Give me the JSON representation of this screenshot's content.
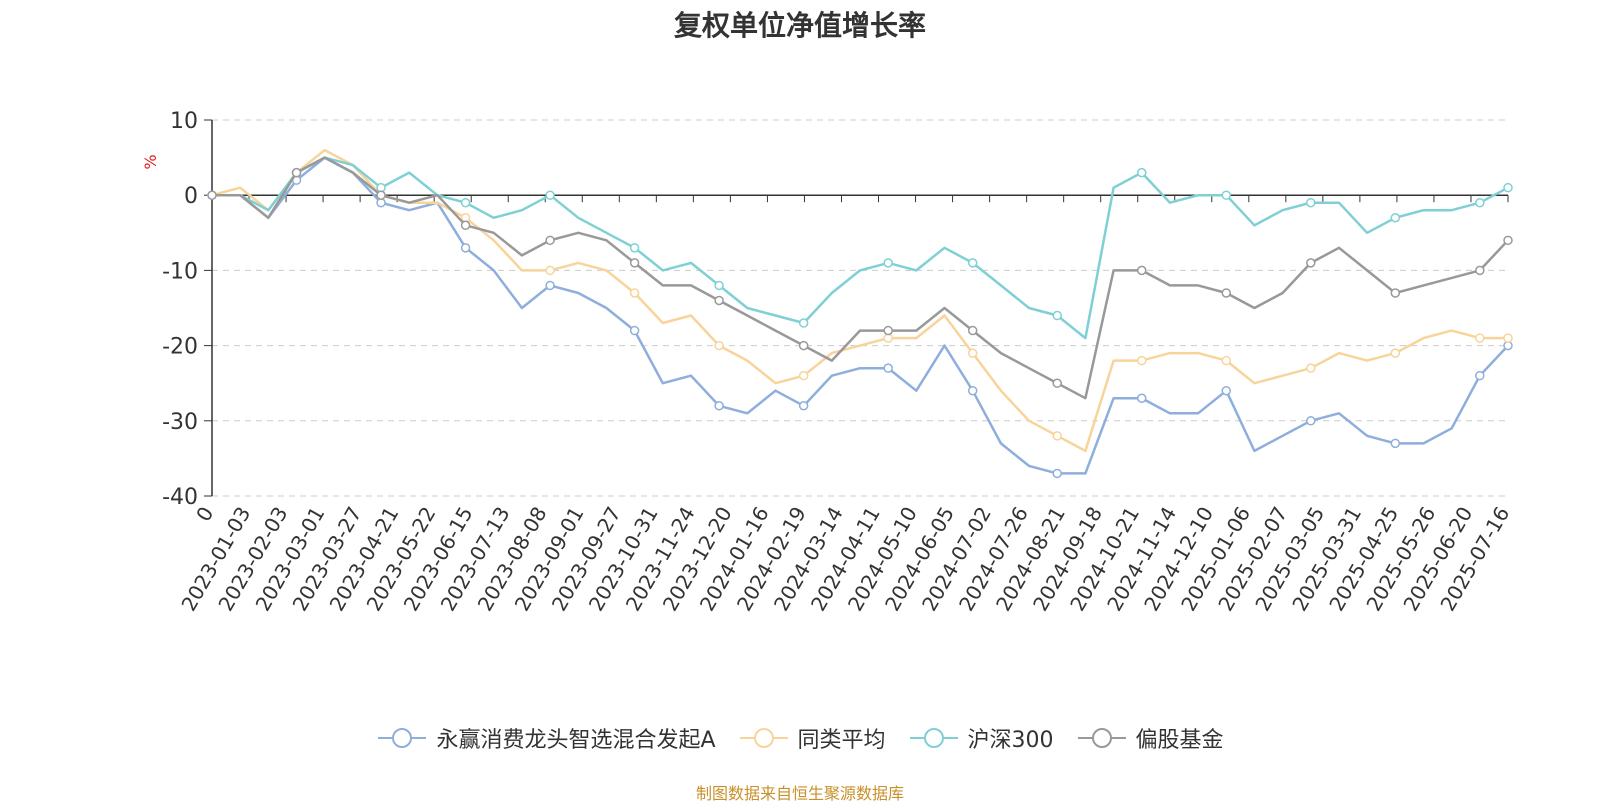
{
  "chart_data": {
    "type": "line",
    "title": "复权单位净值增长率",
    "ylabel": "%",
    "ylim": [
      -40,
      10
    ],
    "yticks": [
      10,
      0,
      -10,
      -20,
      -30,
      -40
    ],
    "x_ticks": [
      "0",
      "2023-01-03",
      "2023-02-03",
      "2023-03-01",
      "2023-03-27",
      "2023-04-21",
      "2023-05-22",
      "2023-06-15",
      "2023-07-13",
      "2023-08-08",
      "2023-09-01",
      "2023-09-27",
      "2023-10-31",
      "2023-11-24",
      "2023-12-20",
      "2024-01-16",
      "2024-02-19",
      "2024-03-14",
      "2024-04-11",
      "2024-05-10",
      "2024-06-05",
      "2024-07-02",
      "2024-07-26",
      "2024-08-21",
      "2024-09-18",
      "2024-10-21",
      "2024-11-14",
      "2024-12-10",
      "2025-01-06",
      "2025-02-07",
      "2025-03-05",
      "2025-03-31",
      "2025-04-25",
      "2025-05-26",
      "2025-06-20",
      "2025-07-16"
    ],
    "grid": "dashed horizontal",
    "legend_position": "bottom",
    "series": [
      {
        "name": "永赢消费龙头智选混合发起A",
        "color": "#8eaedc",
        "values": [
          0,
          0,
          -3,
          2,
          5,
          3,
          -1,
          -2,
          -1,
          -7,
          -10,
          -15,
          -12,
          -13,
          -15,
          -18,
          -25,
          -24,
          -28,
          -29,
          -26,
          -28,
          -24,
          -23,
          -23,
          -26,
          -20,
          -26,
          -33,
          -36,
          -37,
          -37,
          -27,
          -27,
          -29,
          -29,
          -26,
          -34,
          -32,
          -30,
          -29,
          -32,
          -33,
          -33,
          -31,
          -24,
          -20
        ]
      },
      {
        "name": "同类平均",
        "color": "#f8d49a",
        "values": [
          0,
          1,
          -2,
          3,
          6,
          4,
          0,
          -1,
          -1,
          -3,
          -6,
          -10,
          -10,
          -9,
          -10,
          -13,
          -17,
          -16,
          -20,
          -22,
          -25,
          -24,
          -21,
          -20,
          -19,
          -19,
          -16,
          -21,
          -26,
          -30,
          -32,
          -34,
          -22,
          -22,
          -21,
          -21,
          -22,
          -25,
          -24,
          -23,
          -21,
          -22,
          -21,
          -19,
          -18,
          -19,
          -19
        ]
      },
      {
        "name": "沪深300",
        "color": "#7fd0d4",
        "values": [
          0,
          0,
          -2,
          3,
          5,
          4,
          1,
          3,
          0,
          -1,
          -3,
          -2,
          0,
          -3,
          -5,
          -7,
          -10,
          -9,
          -12,
          -15,
          -16,
          -17,
          -13,
          -10,
          -9,
          -10,
          -7,
          -9,
          -12,
          -15,
          -16,
          -19,
          1,
          3,
          -1,
          0,
          0,
          -4,
          -2,
          -1,
          -1,
          -5,
          -3,
          -2,
          -2,
          -1,
          1
        ]
      },
      {
        "name": "偏股基金",
        "color": "#999999",
        "values": [
          0,
          0,
          -3,
          3,
          5,
          3,
          0,
          -1,
          0,
          -4,
          -5,
          -8,
          -6,
          -5,
          -6,
          -9,
          -12,
          -12,
          -14,
          -16,
          -18,
          -20,
          -22,
          -18,
          -18,
          -18,
          -15,
          -18,
          -21,
          -23,
          -25,
          -27,
          -10,
          -10,
          -12,
          -12,
          -13,
          -15,
          -13,
          -9,
          -7,
          -10,
          -13,
          -12,
          -11,
          -10,
          -6
        ]
      }
    ]
  },
  "legend": {
    "items": [
      {
        "label": "永赢消费龙头智选混合发起A",
        "color": "#8eaedc"
      },
      {
        "label": "同类平均",
        "color": "#f8d49a"
      },
      {
        "label": "沪深300",
        "color": "#7fd0d4"
      },
      {
        "label": "偏股基金",
        "color": "#999999"
      }
    ]
  },
  "source_note": "制图数据来自恒生聚源数据库"
}
